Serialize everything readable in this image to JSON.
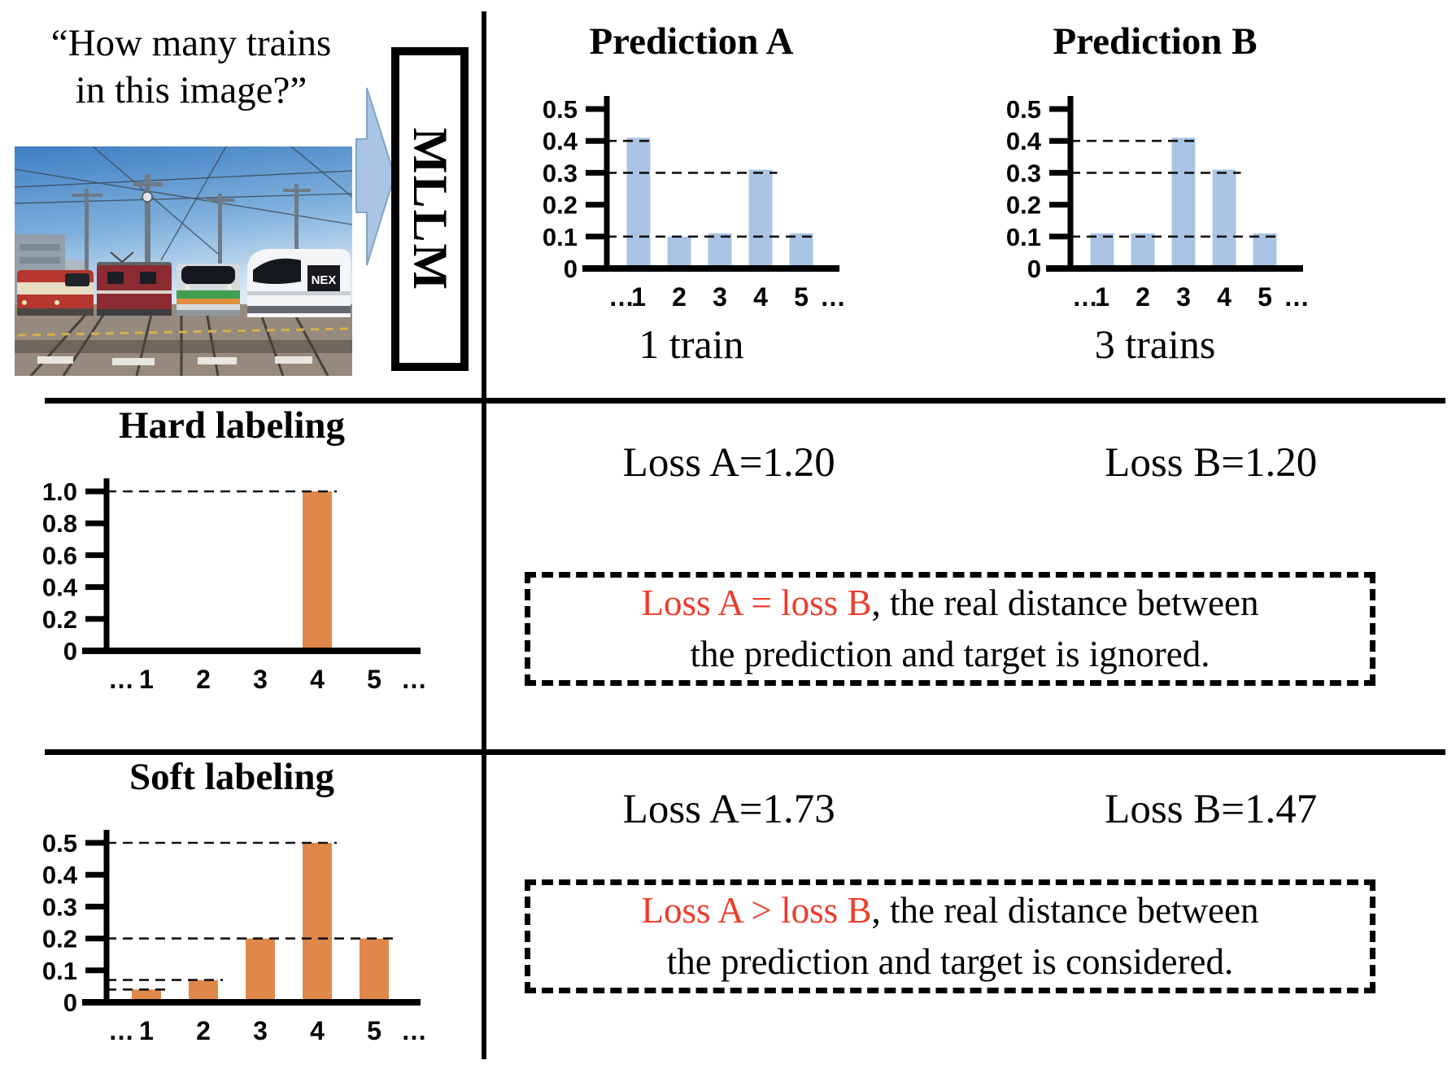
{
  "colors": {
    "bar_blue": "#a9c4e4",
    "bar_orange": "#e0884a",
    "red_text": "#ee3c2b",
    "arrow_fill": "#a9c4e4",
    "arrow_stroke": "#7fa5cc"
  },
  "question": {
    "line1": "“How many trains",
    "line2": "in this image?”"
  },
  "mllm_label": "MLLM",
  "chart_data": [
    {
      "id": "prediction_a",
      "type": "bar",
      "title": "Prediction A",
      "caption": "1 train",
      "categories": [
        "1",
        "2",
        "3",
        "4",
        "5"
      ],
      "x_labels": [
        "…",
        "1",
        "2",
        "3",
        "4",
        "5",
        "…"
      ],
      "values": [
        0.41,
        0.1,
        0.11,
        0.31,
        0.11
      ],
      "yticks": [
        0,
        0.1,
        0.2,
        0.3,
        0.4,
        0.5
      ],
      "ylim": [
        0,
        0.5
      ],
      "gridlines": [
        {
          "y": 0.4,
          "to_bar": 1
        },
        {
          "y": 0.3,
          "to_bar": 4
        },
        {
          "y": 0.1,
          "to_bar": 5
        }
      ],
      "bar_color": "#a9c4e4"
    },
    {
      "id": "prediction_b",
      "type": "bar",
      "title": "Prediction B",
      "caption": "3 trains",
      "categories": [
        "1",
        "2",
        "3",
        "4",
        "5"
      ],
      "x_labels": [
        "…",
        "1",
        "2",
        "3",
        "4",
        "5",
        "…"
      ],
      "values": [
        0.11,
        0.11,
        0.41,
        0.31,
        0.11
      ],
      "yticks": [
        0,
        0.1,
        0.2,
        0.3,
        0.4,
        0.5
      ],
      "ylim": [
        0,
        0.5
      ],
      "gridlines": [
        {
          "y": 0.4,
          "to_bar": 3
        },
        {
          "y": 0.3,
          "to_bar": 4
        },
        {
          "y": 0.1,
          "to_bar": 5
        }
      ],
      "bar_color": "#a9c4e4"
    },
    {
      "id": "hard_labeling",
      "type": "bar",
      "title": "Hard labeling",
      "caption": "",
      "categories": [
        "1",
        "2",
        "3",
        "4",
        "5"
      ],
      "x_labels": [
        "…",
        "1",
        "2",
        "3",
        "4",
        "5",
        "…"
      ],
      "values": [
        0,
        0,
        0,
        1.0,
        0
      ],
      "yticks": [
        0,
        0.2,
        0.4,
        0.6,
        0.8,
        1.0
      ],
      "ylim": [
        0,
        1.0
      ],
      "gridlines": [
        {
          "y": 1.0,
          "to_bar": 4
        }
      ],
      "bar_color": "#e0884a"
    },
    {
      "id": "soft_labeling",
      "type": "bar",
      "title": "Soft labeling",
      "caption": "",
      "categories": [
        "1",
        "2",
        "3",
        "4",
        "5"
      ],
      "x_labels": [
        "…",
        "1",
        "2",
        "3",
        "4",
        "5",
        "…"
      ],
      "values": [
        0.04,
        0.07,
        0.2,
        0.5,
        0.2
      ],
      "yticks": [
        0,
        0.1,
        0.2,
        0.3,
        0.4,
        0.5
      ],
      "ylim": [
        0,
        0.5
      ],
      "gridlines": [
        {
          "y": 0.5,
          "to_bar": 4
        },
        {
          "y": 0.2,
          "to_bar": 5
        },
        {
          "y": 0.07,
          "to_bar": 2
        },
        {
          "y": 0.04,
          "to_bar": 1
        }
      ],
      "bar_color": "#e0884a"
    }
  ],
  "losses": {
    "hard": {
      "a": "Loss A=1.20",
      "b": "Loss B=1.20"
    },
    "soft": {
      "a": "Loss A=1.73",
      "b": "Loss B=1.47"
    }
  },
  "notes": {
    "hard": {
      "red_part": "Loss A = loss B",
      "black_line1": ", the real distance between",
      "line2": "the prediction and target is ignored."
    },
    "soft": {
      "red_part": "Loss A > loss B",
      "black_line1": ", the real distance between",
      "line2": "the prediction and target is considered."
    }
  }
}
